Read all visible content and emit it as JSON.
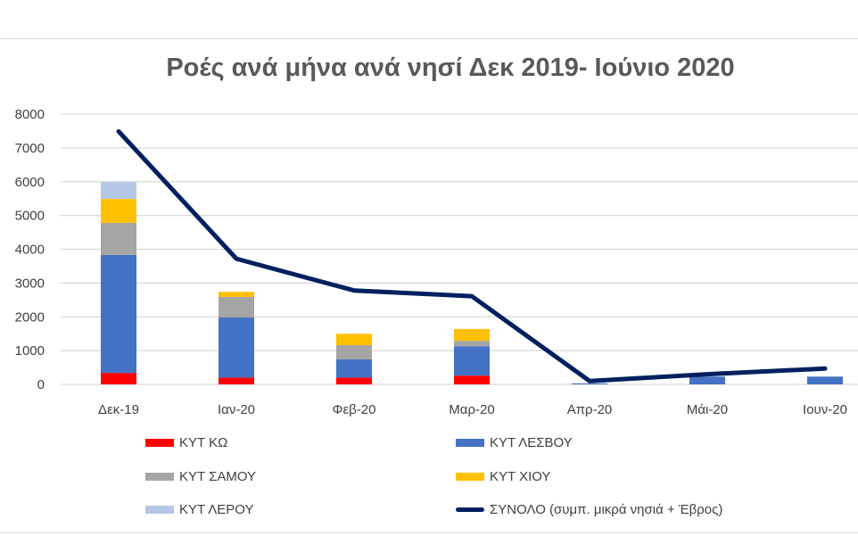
{
  "chart_data": {
    "type": "bar",
    "stacked": true,
    "title": "Ροές ανά μήνα ανά νησί Δεκ 2019- Ιούνιο 2020",
    "xlabel": "",
    "ylabel": "",
    "ylim": [
      0,
      8000
    ],
    "yticks": [
      "0",
      "1000",
      "2000",
      "3000",
      "4000",
      "5000",
      "6000",
      "7000",
      "8000"
    ],
    "grid": true,
    "legend_position": "bottom",
    "categories": [
      "Δεκ-19",
      "Ιαν-20",
      "Φεβ-20",
      "Μαρ-20",
      "Απρ-20",
      "Μάι-20",
      "Ιουν-20"
    ],
    "series": [
      {
        "name": "ΚΥΤ ΚΩ",
        "kind": "bar",
        "color": "#ff0000",
        "values": [
          340,
          200,
          200,
          260,
          0,
          0,
          0
        ]
      },
      {
        "name": "ΚΥΤ ΛΕΣΒΟΥ",
        "kind": "bar",
        "color": "#4472c4",
        "values": [
          3490,
          1780,
          540,
          870,
          30,
          230,
          230
        ]
      },
      {
        "name": "ΚΥΤ ΣΑΜΟΥ",
        "kind": "bar",
        "color": "#a5a5a5",
        "values": [
          950,
          610,
          420,
          160,
          0,
          0,
          0
        ]
      },
      {
        "name": "ΚΥΤ ΧΙΟΥ",
        "kind": "bar",
        "color": "#ffc000",
        "values": [
          710,
          150,
          340,
          350,
          0,
          0,
          0
        ]
      },
      {
        "name": "ΚΥΤ ΛΕΡΟΥ",
        "kind": "bar",
        "color": "#b4c7e7",
        "values": [
          500,
          0,
          0,
          0,
          0,
          0,
          0
        ]
      },
      {
        "name": "ΣΥΝΟΛΟ (συμπ. μικρά νησιά + Έβρος)",
        "kind": "line",
        "color": "#002060",
        "values": [
          7490,
          3720,
          2780,
          2610,
          100,
          300,
          470
        ]
      }
    ]
  }
}
